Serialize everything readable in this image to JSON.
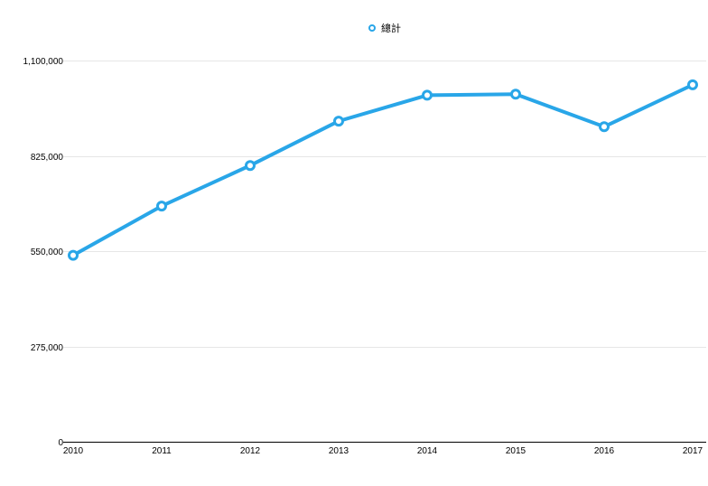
{
  "chart_data": {
    "type": "line",
    "title": "",
    "xlabel": "",
    "ylabel": "",
    "categories": [
      "2010",
      "2011",
      "2012",
      "2013",
      "2014",
      "2015",
      "2016",
      "2017"
    ],
    "series": [
      {
        "name": "總計",
        "values": [
          538000,
          680000,
          797000,
          925000,
          1000000,
          1003000,
          909000,
          1030000
        ],
        "color": "#29a6e8"
      }
    ],
    "ylim": [
      0,
      1100000
    ],
    "yticks": [
      0,
      275000,
      550000,
      825000,
      1100000
    ],
    "ytick_labels": [
      "0",
      "275,000",
      "550,000",
      "825,000",
      "1,100,000"
    ],
    "grid": true,
    "legend": "top-center",
    "marker": "hollow-circle"
  }
}
